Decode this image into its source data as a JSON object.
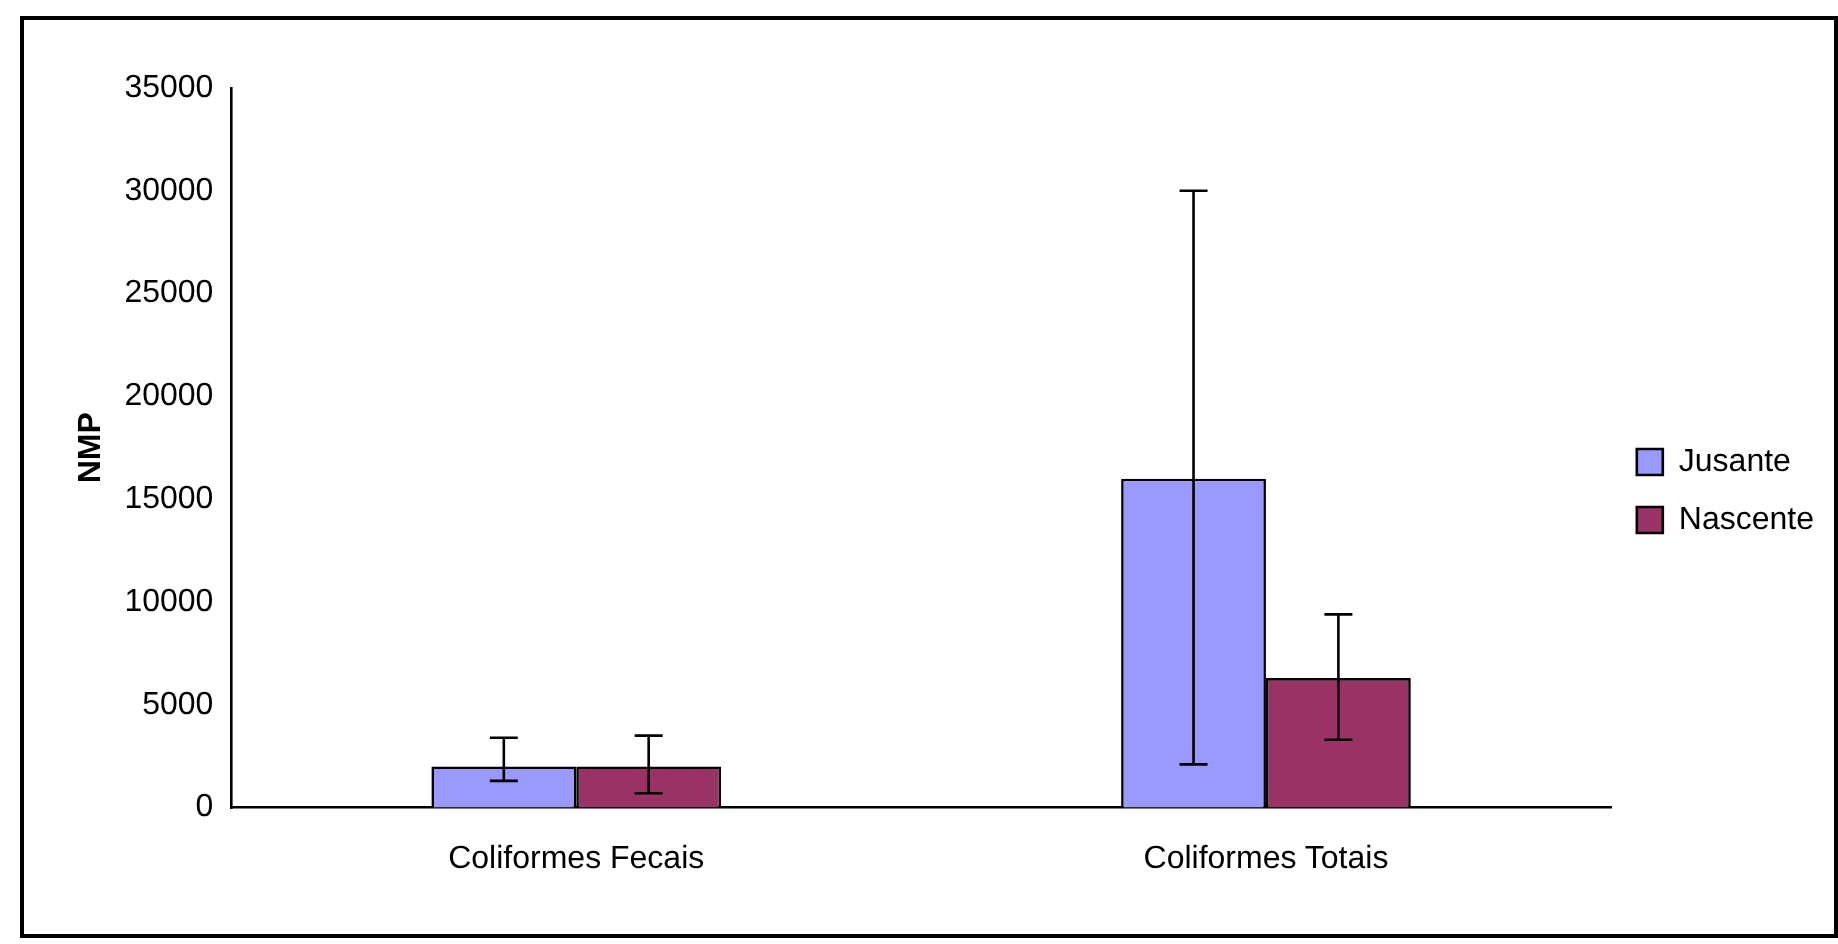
{
  "chart_data": {
    "type": "bar",
    "ylabel": "NMP",
    "categories": [
      "Coliformes Fecais",
      "Coliformes Totais"
    ],
    "series": [
      {
        "name": "Jusante",
        "color": "#9999ff",
        "values": [
          2000,
          16000
        ],
        "errors": [
          [
            1300,
            3400
          ],
          [
            2100,
            30000
          ]
        ]
      },
      {
        "name": "Nascente",
        "color": "#993366",
        "values": [
          2000,
          6300
        ],
        "errors": [
          [
            700,
            3500
          ],
          [
            3300,
            9400
          ]
        ]
      }
    ],
    "ylim": [
      0,
      35000
    ],
    "yticks": [
      0,
      5000,
      10000,
      15000,
      20000,
      25000,
      30000,
      35000
    ],
    "grid": false,
    "legend": "right"
  }
}
